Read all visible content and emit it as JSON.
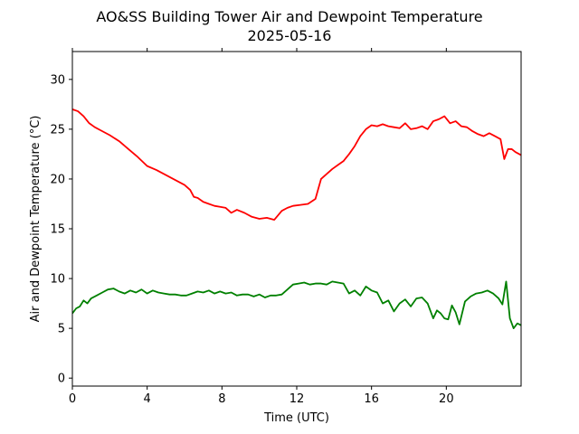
{
  "chart_data": {
    "type": "line",
    "title": "AO&SS Building Tower Air and Dewpoint Temperature",
    "subtitle": "2025-05-16",
    "xlabel": "Time (UTC)",
    "ylabel": "Air and Dewpoint Temperature (°C)",
    "xlim": [
      0,
      24
    ],
    "ylim": [
      -0.8,
      32.8
    ],
    "xticks": [
      0,
      4,
      8,
      12,
      16,
      20
    ],
    "yticks": [
      0,
      5,
      10,
      15,
      20,
      25,
      30
    ],
    "grid": false,
    "series": [
      {
        "color": "#ff0000",
        "x": [
          0,
          0.3,
          0.6,
          0.9,
          1.2,
          1.5,
          2,
          2.5,
          3,
          3.5,
          4,
          4.5,
          5,
          5.5,
          6,
          6.3,
          6.5,
          6.7,
          7,
          7.3,
          7.6,
          7.9,
          8.2,
          8.5,
          8.8,
          9.2,
          9.6,
          10,
          10.4,
          10.8,
          11.2,
          11.5,
          11.8,
          12.2,
          12.6,
          13,
          13.3,
          13.6,
          13.9,
          14.2,
          14.5,
          14.8,
          15.1,
          15.4,
          15.7,
          16,
          16.3,
          16.6,
          16.9,
          17.2,
          17.5,
          17.8,
          18.1,
          18.4,
          18.7,
          19,
          19.3,
          19.6,
          19.9,
          20.2,
          20.5,
          20.8,
          21.1,
          21.4,
          21.7,
          22,
          22.3,
          22.6,
          22.9,
          23.1,
          23.3,
          23.5,
          23.7,
          24
        ],
        "values": [
          27.0,
          26.8,
          26.3,
          25.6,
          25.2,
          24.9,
          24.4,
          23.8,
          23.0,
          22.2,
          21.3,
          20.9,
          20.4,
          19.9,
          19.4,
          18.9,
          18.2,
          18.1,
          17.7,
          17.5,
          17.3,
          17.2,
          17.1,
          16.6,
          16.9,
          16.6,
          16.2,
          16.0,
          16.1,
          15.9,
          16.8,
          17.1,
          17.3,
          17.4,
          17.5,
          18.0,
          20.0,
          20.5,
          21.0,
          21.4,
          21.8,
          22.5,
          23.3,
          24.3,
          25.0,
          25.4,
          25.3,
          25.5,
          25.3,
          25.2,
          25.1,
          25.6,
          25.0,
          25.1,
          25.3,
          25.0,
          25.8,
          26.0,
          26.3,
          25.6,
          25.8,
          25.3,
          25.2,
          24.8,
          24.5,
          24.3,
          24.6,
          24.3,
          24.0,
          22.0,
          23.0,
          23.0,
          22.7,
          22.4
        ]
      },
      {
        "color": "#008000",
        "x": [
          0,
          0.2,
          0.4,
          0.6,
          0.8,
          1.0,
          1.3,
          1.6,
          1.9,
          2.2,
          2.5,
          2.8,
          3.1,
          3.4,
          3.7,
          4.0,
          4.3,
          4.6,
          4.9,
          5.2,
          5.5,
          5.8,
          6.1,
          6.4,
          6.7,
          7.0,
          7.3,
          7.6,
          7.9,
          8.2,
          8.5,
          8.8,
          9.1,
          9.4,
          9.7,
          10.0,
          10.3,
          10.6,
          10.9,
          11.2,
          11.5,
          11.8,
          12.1,
          12.4,
          12.7,
          13.0,
          13.3,
          13.6,
          13.9,
          14.2,
          14.5,
          14.8,
          15.1,
          15.4,
          15.7,
          16.0,
          16.3,
          16.6,
          16.9,
          17.2,
          17.5,
          17.8,
          18.1,
          18.4,
          18.7,
          19.0,
          19.3,
          19.5,
          19.7,
          19.9,
          20.1,
          20.3,
          20.5,
          20.7,
          21.0,
          21.3,
          21.6,
          21.9,
          22.2,
          22.5,
          22.8,
          23.0,
          23.2,
          23.4,
          23.6,
          23.8,
          24.0
        ],
        "values": [
          6.5,
          7.0,
          7.2,
          7.8,
          7.5,
          8.0,
          8.3,
          8.6,
          8.9,
          9.0,
          8.7,
          8.5,
          8.8,
          8.6,
          8.9,
          8.5,
          8.8,
          8.6,
          8.5,
          8.4,
          8.4,
          8.3,
          8.3,
          8.5,
          8.7,
          8.6,
          8.8,
          8.5,
          8.7,
          8.5,
          8.6,
          8.3,
          8.4,
          8.4,
          8.2,
          8.4,
          8.1,
          8.3,
          8.3,
          8.4,
          8.9,
          9.4,
          9.5,
          9.6,
          9.4,
          9.5,
          9.5,
          9.4,
          9.7,
          9.6,
          9.5,
          8.5,
          8.8,
          8.3,
          9.2,
          8.8,
          8.6,
          7.5,
          7.8,
          6.7,
          7.5,
          7.9,
          7.2,
          8.0,
          8.1,
          7.5,
          6.0,
          6.8,
          6.5,
          6.0,
          5.9,
          7.3,
          6.6,
          5.4,
          7.7,
          8.2,
          8.5,
          8.6,
          8.8,
          8.5,
          8.0,
          7.4,
          9.7,
          6.0,
          5.0,
          5.5,
          5.3
        ]
      }
    ]
  }
}
